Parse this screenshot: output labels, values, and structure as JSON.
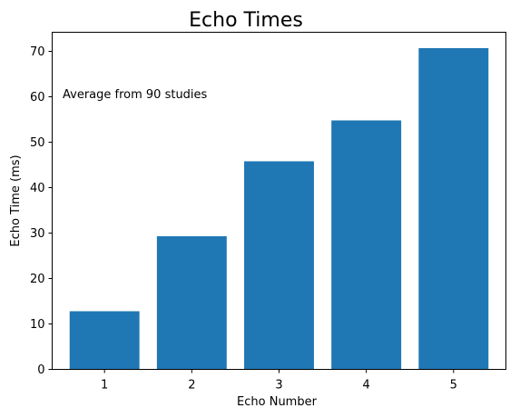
{
  "chart_data": {
    "type": "bar",
    "title": "Echo Times",
    "xlabel": "Echo Number",
    "ylabel": "Echo Time (ms)",
    "categories": [
      "1",
      "2",
      "3",
      "4",
      "5"
    ],
    "values": [
      12.8,
      29.3,
      45.8,
      54.8,
      70.7
    ],
    "ylim": [
      0,
      74.2
    ],
    "yticks": [
      0,
      10,
      20,
      30,
      40,
      50,
      60,
      70
    ],
    "annotation": "Average from 90 studies",
    "bar_color": "#1f77b4",
    "grid": false,
    "legend": "none"
  }
}
